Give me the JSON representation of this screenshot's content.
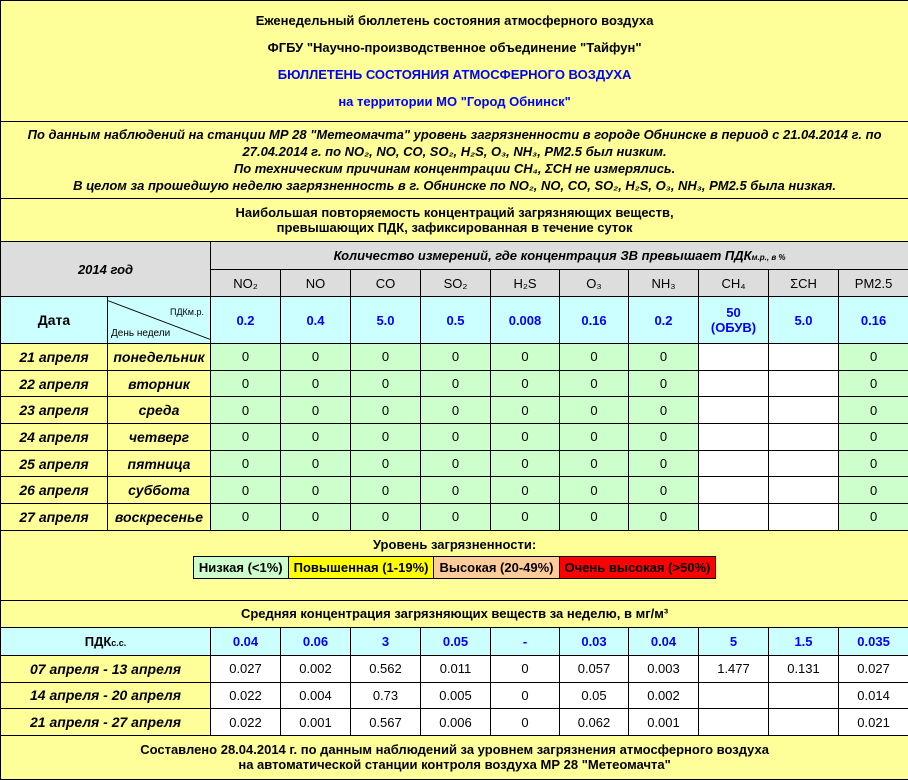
{
  "header": {
    "line1": "Еженедельный бюллетень состояния атмосферного воздуха",
    "line2": "ФГБУ \"Научно-производственное объединение \"Тайфун\"",
    "line3": "БЮЛЛЕТЕНЬ СОСТОЯНИЯ АТМОСФЕРНОГО ВОЗДУХА",
    "line4": "на территории МО \"Город Обнинск\""
  },
  "summary": {
    "p1": "По данным наблюдений на станции МР 28 \"Метеомачта\" уровень загрязненности в городе Обнинске в период с 21.04.2014 г. по 27.04.2014 г. по NO₂, NO, CO, SO₂, H₂S, O₃, NH₃, PM2.5 был низким.",
    "p2": "По техническим причинам концентрации CH₄, ΣCH не измерялись.",
    "p3": "В целом за прошедшую неделю загрязненность в г. Обнинске по NO₂, NO, CO, SO₂, H₂S, O₃, NH₃, PM2.5 была низкая."
  },
  "freq_title": {
    "l1": "Наибольшая повторяемость концентраций загрязняющих веществ,",
    "l2": "превышающих ПДК, зафиксированная в течение суток"
  },
  "table": {
    "year": "2014 год",
    "count_header": "Количество измерений, где концентрация ЗВ превышает ПДК",
    "count_header_sub": "м.р., в %",
    "pollutants": [
      "NO₂",
      "NO",
      "CO",
      "SO₂",
      "H₂S",
      "O₃",
      "NH₃",
      "CH₄",
      "ΣCH",
      "PM2.5"
    ],
    "date_label": "Дата",
    "pdk_label": "ПДКм.р.",
    "weekday_label": "День недели",
    "pdk_mr": [
      "0.2",
      "0.4",
      "5.0",
      "0.5",
      "0.008",
      "0.16",
      "0.2",
      "50",
      "5.0",
      "0.16"
    ],
    "pdk_ch4_note": "(ОБУВ)",
    "rows": [
      {
        "date": "21 апреля",
        "day": "понедельник",
        "v": [
          "0",
          "0",
          "0",
          "0",
          "0",
          "0",
          "0",
          "",
          "",
          "0"
        ]
      },
      {
        "date": "22 апреля",
        "day": "вторник",
        "v": [
          "0",
          "0",
          "0",
          "0",
          "0",
          "0",
          "0",
          "",
          "",
          "0"
        ]
      },
      {
        "date": "23 апреля",
        "day": "среда",
        "v": [
          "0",
          "0",
          "0",
          "0",
          "0",
          "0",
          "0",
          "",
          "",
          "0"
        ]
      },
      {
        "date": "24 апреля",
        "day": "четверг",
        "v": [
          "0",
          "0",
          "0",
          "0",
          "0",
          "0",
          "0",
          "",
          "",
          "0"
        ]
      },
      {
        "date": "25 апреля",
        "day": "пятница",
        "v": [
          "0",
          "0",
          "0",
          "0",
          "0",
          "0",
          "0",
          "",
          "",
          "0"
        ]
      },
      {
        "date": "26 апреля",
        "day": "суббота",
        "v": [
          "0",
          "0",
          "0",
          "0",
          "0",
          "0",
          "0",
          "",
          "",
          "0"
        ]
      },
      {
        "date": "27 апреля",
        "day": "воскресенье",
        "v": [
          "0",
          "0",
          "0",
          "0",
          "0",
          "0",
          "0",
          "",
          "",
          "0"
        ]
      }
    ]
  },
  "levels": {
    "title": "Уровень загрязненности:",
    "items": [
      {
        "label": "Низкая (<1%)",
        "color": "#ccffcc"
      },
      {
        "label": "Повышенная (1-19%)",
        "color": "#ffff00"
      },
      {
        "label": "Высокая (20-49%)",
        "color": "#ffcc99"
      },
      {
        "label": "Очень высокая (>50%)",
        "color": "#ff0000"
      }
    ]
  },
  "mean": {
    "title": "Средняя концентрация загрязняющих веществ за неделю, в мг/м³",
    "pdk_label": "ПДКс.с.",
    "pdk_ss": [
      "0.04",
      "0.06",
      "3",
      "0.05",
      "-",
      "0.03",
      "0.04",
      "5",
      "1.5",
      "0.035"
    ],
    "rows": [
      {
        "period": "07 апреля - 13 апреля",
        "v": [
          "0.027",
          "0.002",
          "0.562",
          "0.011",
          "0",
          "0.057",
          "0.003",
          "1.477",
          "0.131",
          "0.027"
        ]
      },
      {
        "period": "14 апреля - 20 апреля",
        "v": [
          "0.022",
          "0.004",
          "0.73",
          "0.005",
          "0",
          "0.05",
          "0.002",
          "",
          "",
          "0.014"
        ]
      },
      {
        "period": "21 апреля - 27 апреля",
        "v": [
          "0.022",
          "0.001",
          "0.567",
          "0.006",
          "0",
          "0.062",
          "0.001",
          "",
          "",
          "0.021"
        ]
      }
    ]
  },
  "footer": {
    "l1": "Составлено 28.04.2014 г. по данным наблюдений за уровнем загрязнения атмосферного воздуха",
    "l2": "на автоматической станции контроля воздуха МР 28 \"Метеомачта\""
  }
}
